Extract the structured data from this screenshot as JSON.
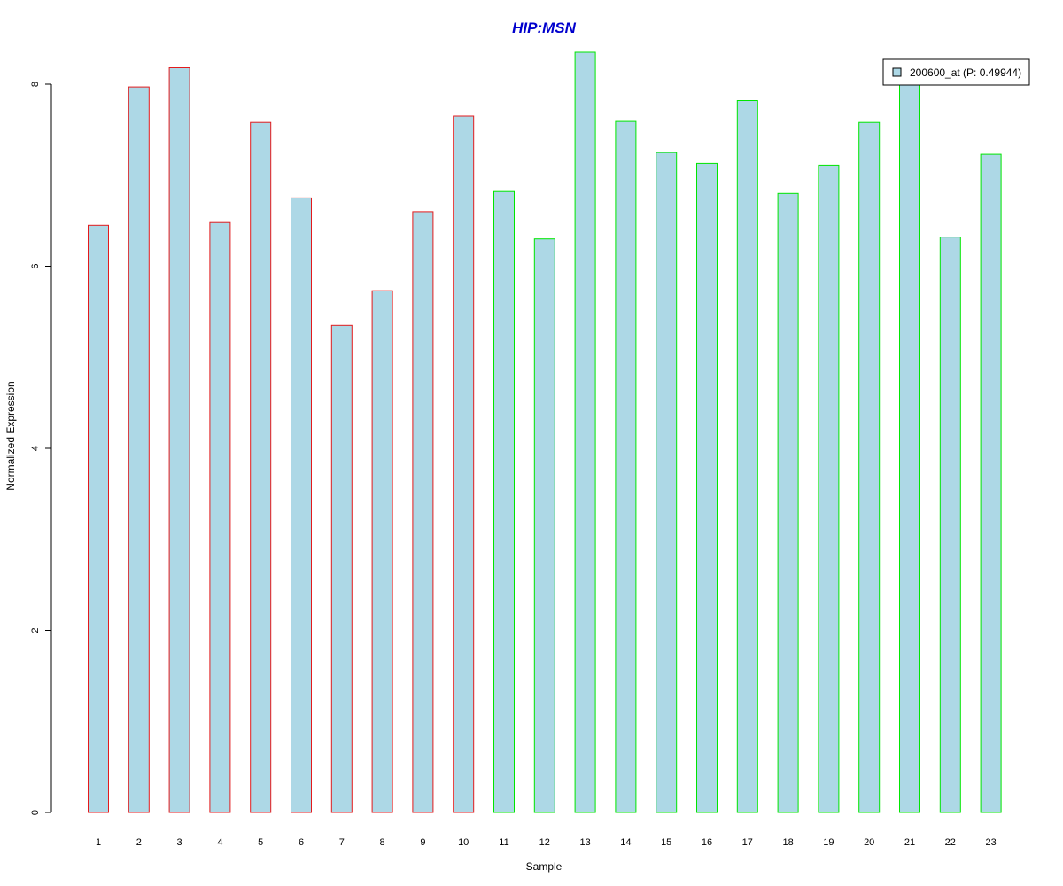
{
  "chart_data": {
    "type": "bar",
    "title": "HIP:MSN",
    "xlabel": "Sample",
    "ylabel": "Normalized Expression",
    "ylim": [
      0,
      8
    ],
    "yticks": [
      0,
      2,
      4,
      6,
      8
    ],
    "categories": [
      "1",
      "2",
      "3",
      "4",
      "5",
      "6",
      "7",
      "8",
      "9",
      "10",
      "11",
      "12",
      "13",
      "14",
      "15",
      "16",
      "17",
      "18",
      "19",
      "20",
      "21",
      "22",
      "23"
    ],
    "values": [
      6.45,
      7.97,
      8.18,
      6.48,
      7.58,
      6.75,
      5.35,
      5.73,
      6.6,
      7.65,
      6.82,
      6.3,
      8.35,
      7.59,
      7.25,
      7.13,
      7.82,
      6.8,
      7.11,
      7.58,
      8.1,
      6.32,
      7.23
    ],
    "groups": [
      1,
      1,
      1,
      1,
      1,
      1,
      1,
      1,
      1,
      1,
      2,
      2,
      2,
      2,
      2,
      2,
      2,
      2,
      2,
      2,
      2,
      2,
      2
    ],
    "group_colors": {
      "1": "#e31a1c",
      "2": "#00e600"
    },
    "bar_fill": "#add8e6",
    "title_color": "#0000cd",
    "grid": false,
    "legend": {
      "position": "top-right",
      "entries": [
        {
          "label": "200600_at (P: 0.49944)",
          "color": "#add8e6"
        }
      ]
    }
  }
}
